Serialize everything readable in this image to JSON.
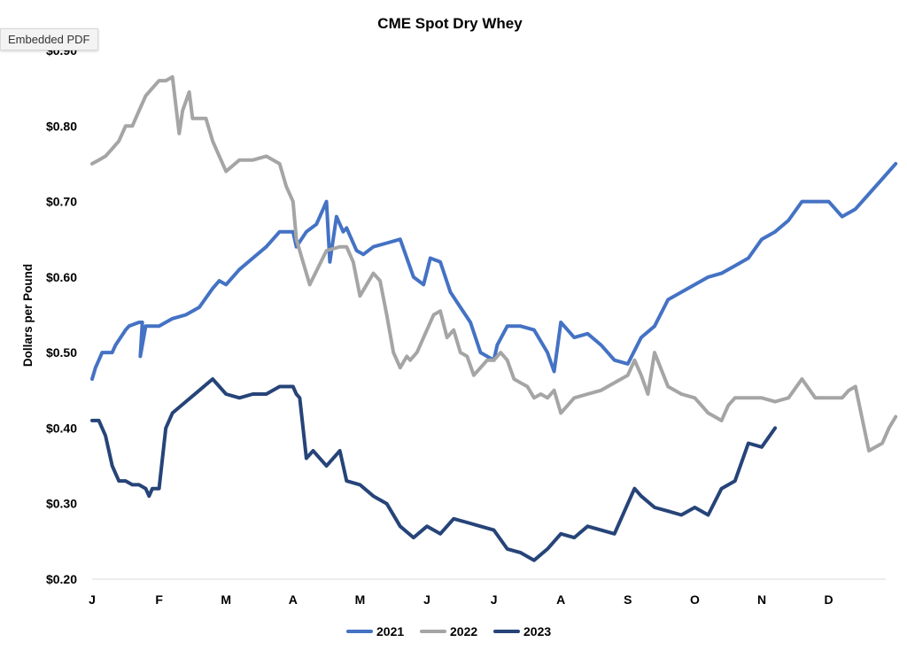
{
  "tooltip": {
    "label": "Embedded PDF"
  },
  "chart_data": {
    "type": "line",
    "title": "CME Spot Dry Whey",
    "xlabel": "",
    "ylabel": "Dollars per Pound",
    "x_ticks": [
      "J",
      "F",
      "M",
      "A",
      "M",
      "J",
      "J",
      "A",
      "S",
      "O",
      "N",
      "D"
    ],
    "y_ticks": [
      "$0.90",
      "$0.80",
      "$0.70",
      "$0.60",
      "$0.50",
      "$0.40",
      "$0.30",
      "$0.20"
    ],
    "ylim": [
      0.2,
      0.9
    ],
    "xlim": [
      0,
      12
    ],
    "x_unit": "months since Jan 1",
    "grid": false,
    "legend_position": "bottom",
    "series": [
      {
        "name": "2021",
        "color": "#4472C4",
        "x": [
          0,
          0.05,
          0.1,
          0.15,
          0.3,
          0.35,
          0.5,
          0.55,
          0.7,
          0.75,
          0.72,
          0.8,
          1.0,
          1.2,
          1.4,
          1.6,
          1.8,
          1.9,
          2.0,
          2.2,
          2.4,
          2.6,
          2.8,
          3.0,
          3.05,
          3.2,
          3.35,
          3.5,
          3.55,
          3.65,
          3.75,
          3.8,
          3.95,
          4.05,
          4.2,
          4.4,
          4.6,
          4.8,
          4.95,
          5.05,
          5.2,
          5.35,
          5.5,
          5.65,
          5.8,
          6.0,
          6.05,
          6.2,
          6.4,
          6.6,
          6.8,
          6.9,
          7.0,
          7.2,
          7.4,
          7.6,
          7.8,
          8.0,
          8.2,
          8.4,
          8.6,
          8.8,
          9.0,
          9.2,
          9.4,
          9.6,
          9.8,
          10.0,
          10.2,
          10.4,
          10.6,
          10.8,
          11.0,
          11.2,
          11.4,
          11.6,
          11.8,
          12.0
        ],
        "y": [
          0.465,
          0.48,
          0.49,
          0.5,
          0.5,
          0.51,
          0.53,
          0.535,
          0.54,
          0.54,
          0.495,
          0.535,
          0.535,
          0.545,
          0.55,
          0.56,
          0.585,
          0.595,
          0.59,
          0.61,
          0.625,
          0.64,
          0.66,
          0.66,
          0.64,
          0.66,
          0.67,
          0.7,
          0.62,
          0.68,
          0.66,
          0.665,
          0.635,
          0.63,
          0.64,
          0.645,
          0.65,
          0.6,
          0.59,
          0.625,
          0.62,
          0.58,
          0.56,
          0.54,
          0.5,
          0.49,
          0.51,
          0.535,
          0.535,
          0.53,
          0.5,
          0.475,
          0.54,
          0.52,
          0.525,
          0.51,
          0.49,
          0.485,
          0.52,
          0.535,
          0.57,
          0.58,
          0.59,
          0.6,
          0.605,
          0.615,
          0.625,
          0.65,
          0.66,
          0.675,
          0.7,
          0.7,
          0.7,
          0.68,
          0.69,
          0.71,
          0.73,
          0.75
        ]
      },
      {
        "name": "2022",
        "color": "#A5A5A5",
        "x": [
          0,
          0.1,
          0.2,
          0.3,
          0.4,
          0.5,
          0.6,
          0.7,
          0.8,
          0.9,
          1.0,
          1.1,
          1.2,
          1.3,
          1.35,
          1.45,
          1.5,
          1.6,
          1.7,
          1.8,
          1.9,
          2.0,
          2.2,
          2.4,
          2.6,
          2.8,
          2.9,
          3.0,
          3.05,
          3.15,
          3.25,
          3.5,
          3.7,
          3.8,
          3.9,
          4.0,
          4.2,
          4.3,
          4.4,
          4.5,
          4.6,
          4.7,
          4.75,
          4.85,
          5.0,
          5.1,
          5.2,
          5.3,
          5.4,
          5.5,
          5.6,
          5.7,
          5.8,
          5.9,
          6.0,
          6.1,
          6.2,
          6.3,
          6.4,
          6.5,
          6.6,
          6.7,
          6.8,
          6.9,
          7.0,
          7.2,
          7.4,
          7.6,
          7.8,
          8.0,
          8.1,
          8.2,
          8.3,
          8.4,
          8.6,
          8.8,
          9.0,
          9.1,
          9.2,
          9.4,
          9.5,
          9.6,
          9.8,
          10.0,
          10.2,
          10.4,
          10.6,
          10.8,
          11.0,
          11.2,
          11.3,
          11.4,
          11.6,
          11.8,
          11.9,
          12.0
        ],
        "y": [
          0.75,
          0.755,
          0.76,
          0.77,
          0.78,
          0.8,
          0.8,
          0.82,
          0.84,
          0.85,
          0.86,
          0.86,
          0.865,
          0.79,
          0.82,
          0.845,
          0.81,
          0.81,
          0.81,
          0.78,
          0.76,
          0.74,
          0.755,
          0.755,
          0.76,
          0.75,
          0.72,
          0.7,
          0.65,
          0.62,
          0.59,
          0.635,
          0.64,
          0.64,
          0.62,
          0.575,
          0.605,
          0.595,
          0.55,
          0.5,
          0.48,
          0.495,
          0.49,
          0.5,
          0.53,
          0.55,
          0.555,
          0.52,
          0.53,
          0.5,
          0.495,
          0.47,
          0.48,
          0.49,
          0.49,
          0.5,
          0.49,
          0.465,
          0.46,
          0.455,
          0.44,
          0.445,
          0.44,
          0.45,
          0.42,
          0.44,
          0.445,
          0.45,
          0.46,
          0.47,
          0.49,
          0.47,
          0.445,
          0.5,
          0.455,
          0.445,
          0.44,
          0.43,
          0.42,
          0.41,
          0.43,
          0.44,
          0.44,
          0.44,
          0.435,
          0.44,
          0.465,
          0.44,
          0.44,
          0.44,
          0.45,
          0.455,
          0.37,
          0.38,
          0.4,
          0.415
        ]
      },
      {
        "name": "2023",
        "color": "#264478",
        "x": [
          0,
          0.1,
          0.2,
          0.3,
          0.4,
          0.5,
          0.6,
          0.7,
          0.8,
          0.85,
          0.9,
          1.0,
          1.1,
          1.2,
          1.4,
          1.6,
          1.8,
          2.0,
          2.2,
          2.4,
          2.6,
          2.8,
          3.0,
          3.05,
          3.1,
          3.2,
          3.3,
          3.5,
          3.7,
          3.8,
          4.0,
          4.2,
          4.4,
          4.6,
          4.8,
          5.0,
          5.2,
          5.4,
          5.6,
          5.8,
          6.0,
          6.2,
          6.4,
          6.6,
          6.8,
          7.0,
          7.2,
          7.4,
          7.6,
          7.8,
          8.0,
          8.1,
          8.2,
          8.4,
          8.6,
          8.8,
          9.0,
          9.2,
          9.4,
          9.6,
          9.8,
          10.0,
          10.2
        ],
        "y": [
          0.41,
          0.41,
          0.39,
          0.35,
          0.33,
          0.33,
          0.325,
          0.325,
          0.32,
          0.31,
          0.32,
          0.32,
          0.4,
          0.42,
          0.435,
          0.45,
          0.465,
          0.445,
          0.44,
          0.445,
          0.445,
          0.455,
          0.455,
          0.445,
          0.44,
          0.36,
          0.37,
          0.35,
          0.37,
          0.33,
          0.325,
          0.31,
          0.3,
          0.27,
          0.255,
          0.27,
          0.26,
          0.28,
          0.275,
          0.27,
          0.265,
          0.24,
          0.235,
          0.225,
          0.24,
          0.26,
          0.255,
          0.27,
          0.265,
          0.26,
          0.3,
          0.32,
          0.31,
          0.295,
          0.29,
          0.285,
          0.295,
          0.285,
          0.32,
          0.33,
          0.38,
          0.375,
          0.4
        ]
      }
    ]
  }
}
